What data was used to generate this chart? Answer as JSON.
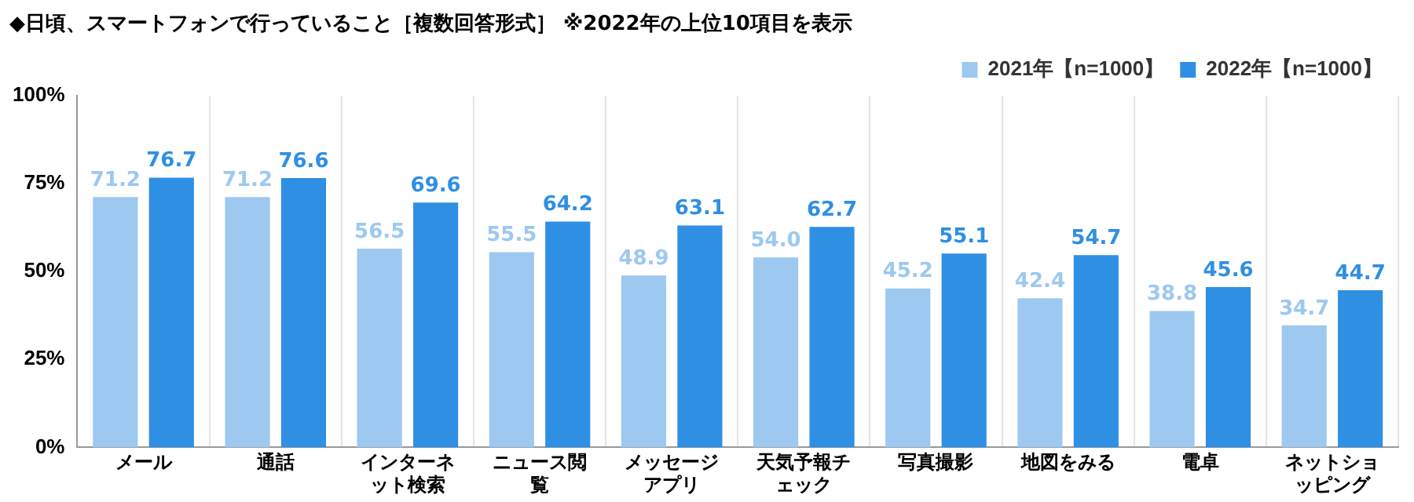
{
  "chart_data": {
    "type": "bar",
    "title": "◆日頃、スマートフォンで行っていること［複数回答形式］ ※2022年の上位10項目を表示",
    "categories": [
      "メール",
      "通話",
      "インターネット検索",
      "ニュース閲覧",
      "メッセージアプリ",
      "天気予報チェック",
      "写真撮影",
      "地図をみる",
      "電卓",
      "ネットショッピング"
    ],
    "series": [
      {
        "name": "2021年【n=1000】",
        "color": "#9dc8f0",
        "values": [
          71.2,
          71.2,
          56.5,
          55.5,
          48.9,
          54.0,
          45.2,
          42.4,
          38.8,
          34.7
        ],
        "value_labels": [
          "71.2",
          "71.2",
          "56.5",
          "55.5",
          "48.9",
          "54.0",
          "45.2",
          "42.4",
          "38.8",
          "34.7"
        ]
      },
      {
        "name": "2022年【n=1000】",
        "color": "#2f8fe3",
        "values": [
          76.7,
          76.6,
          69.6,
          64.2,
          63.1,
          62.7,
          55.1,
          54.7,
          45.6,
          44.7
        ],
        "value_labels": [
          "76.7",
          "76.6",
          "69.6",
          "64.2",
          "63.1",
          "62.7",
          "55.1",
          "54.7",
          "45.6",
          "44.7"
        ]
      }
    ],
    "ylim": [
      0,
      100
    ],
    "yticks": [
      {
        "value": 0,
        "label": "0%"
      },
      {
        "value": 25,
        "label": "25%"
      },
      {
        "value": 50,
        "label": "50%"
      },
      {
        "value": 75,
        "label": "75%"
      },
      {
        "value": 100,
        "label": "100%"
      }
    ],
    "grid": "x",
    "legend": "top right"
  }
}
